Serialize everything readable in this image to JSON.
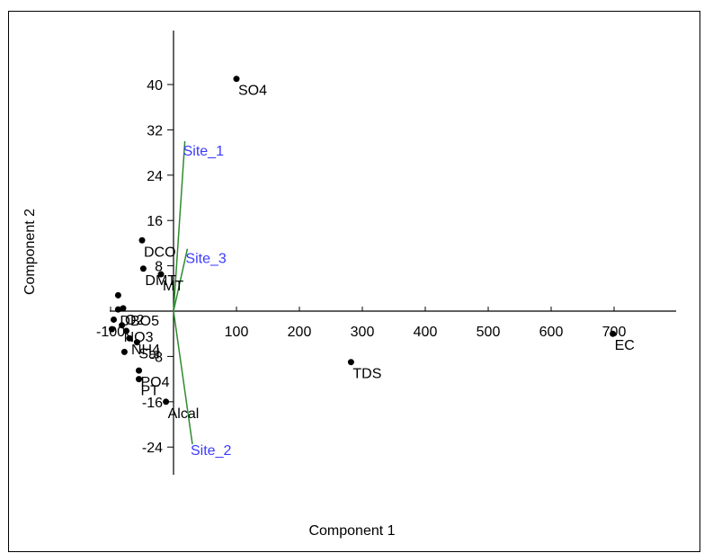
{
  "chart_data": {
    "type": "scatter",
    "title": "",
    "xlabel": "Component 1",
    "ylabel": "Component 2",
    "xlim": [
      -120,
      800
    ],
    "ylim": [
      -30,
      48
    ],
    "x_ticks": [
      {
        "value": -100,
        "label": "-100"
      },
      {
        "value": 100,
        "label": "100"
      },
      {
        "value": 200,
        "label": "200"
      },
      {
        "value": 300,
        "label": "300"
      },
      {
        "value": 400,
        "label": "400"
      },
      {
        "value": 500,
        "label": "500"
      },
      {
        "value": 600,
        "label": "600"
      },
      {
        "value": 700,
        "label": "700"
      }
    ],
    "y_ticks": [
      {
        "value": 40,
        "label": "40"
      },
      {
        "value": 32,
        "label": "32"
      },
      {
        "value": 24,
        "label": "24"
      },
      {
        "value": 16,
        "label": "16"
      },
      {
        "value": 8,
        "label": "8"
      },
      {
        "value": -8,
        "label": "-8"
      },
      {
        "value": -16,
        "label": "-16"
      },
      {
        "value": -24,
        "label": "-24"
      }
    ],
    "grid": false,
    "points": [
      {
        "label": "SO4",
        "x": 100,
        "y": 41
      },
      {
        "label": "EC",
        "x": 698,
        "y": -4
      },
      {
        "label": "TDS",
        "x": 282,
        "y": -9
      },
      {
        "label": "DCO",
        "x": -50,
        "y": 12.5
      },
      {
        "label": "DMT",
        "x": -48,
        "y": 7.5
      },
      {
        "label": "MT",
        "x": -20,
        "y": 6.5
      },
      {
        "label": "",
        "x": -88,
        "y": 2.8
      },
      {
        "label": "O2",
        "x": -80,
        "y": 0.5
      },
      {
        "label": "DBO5",
        "x": -88,
        "y": 0.3
      },
      {
        "label": "",
        "x": -95,
        "y": -1.5
      },
      {
        "label": "NO3",
        "x": -82,
        "y": -2.5
      },
      {
        "label": "",
        "x": -75,
        "y": -3.5
      },
      {
        "label": "",
        "x": -98,
        "y": -3.2
      },
      {
        "label": "NH4",
        "x": -70,
        "y": -4.8
      },
      {
        "label": "Sal",
        "x": -58,
        "y": -5.5
      },
      {
        "label": "",
        "x": -78,
        "y": -7.2
      },
      {
        "label": "PO4",
        "x": -55,
        "y": -10.5
      },
      {
        "label": "PT",
        "x": -55,
        "y": -12
      },
      {
        "label": "Alcal",
        "x": -12,
        "y": -16
      }
    ],
    "loadings": [
      {
        "label": "Site_1",
        "x": 18,
        "y": 30
      },
      {
        "label": "Site_3",
        "x": 22,
        "y": 11
      },
      {
        "label": "Site_2",
        "x": 30,
        "y": -23.5
      }
    ],
    "colors": {
      "points": "#000000",
      "loading_lines": "#2e8b2e",
      "loading_labels": "#3a3aff",
      "axes": "#000000",
      "frame": "#000000"
    }
  }
}
